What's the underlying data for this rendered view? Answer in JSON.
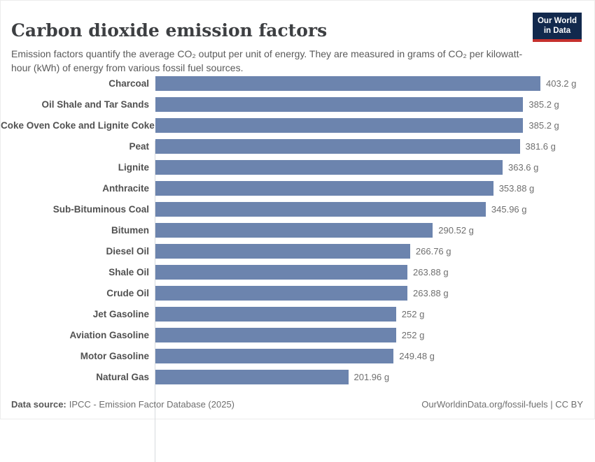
{
  "header": {
    "logo": {
      "line1": "Our World",
      "line2": "in Data"
    }
  },
  "chart_data": {
    "type": "bar",
    "orientation": "horizontal",
    "title": "Carbon dioxide emission factors",
    "subtitle": "Emission factors quantify the average CO₂ output per unit of energy. They are measured in grams of CO₂ per kilowatt-hour (kWh) of energy from various fossil fuel sources.",
    "unit": "g",
    "xlabel": "",
    "ylabel": "",
    "xlim": [
      0,
      403.2
    ],
    "grid": false,
    "legend": false,
    "bar_color": "#6c84ae",
    "axis_line_color": "#d7dade",
    "categories": [
      "Charcoal",
      "Oil Shale and Tar Sands",
      "Coke Oven Coke and Lignite Coke",
      "Peat",
      "Lignite",
      "Anthracite",
      "Sub-Bituminous Coal",
      "Bitumen",
      "Diesel Oil",
      "Shale Oil",
      "Crude Oil",
      "Jet Gasoline",
      "Aviation Gasoline",
      "Motor Gasoline",
      "Natural Gas"
    ],
    "values": [
      403.2,
      385.2,
      385.2,
      381.6,
      363.6,
      353.88,
      345.96,
      290.52,
      266.76,
      263.88,
      263.88,
      252,
      252,
      249.48,
      201.96
    ],
    "value_labels": [
      "403.2 g",
      "385.2 g",
      "385.2 g",
      "381.6 g",
      "363.6 g",
      "353.88 g",
      "345.96 g",
      "290.52 g",
      "266.76 g",
      "263.88 g",
      "263.88 g",
      "252 g",
      "252 g",
      "249.48 g",
      "201.96 g"
    ]
  },
  "footer": {
    "data_source_label": "Data source:",
    "data_source_text": "IPCC - Emission Factor Database (2025)",
    "right_text": "OurWorldinData.org/fossil-fuels | CC BY"
  }
}
